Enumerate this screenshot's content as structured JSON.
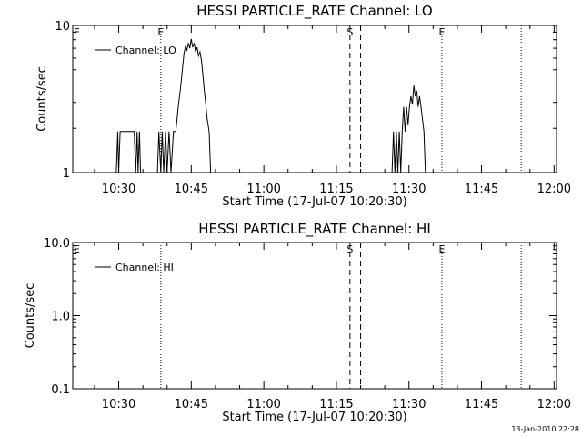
{
  "footer_timestamp": "13-Jan-2010 22:28",
  "chart_data": [
    {
      "type": "line",
      "title": "HESSI PARTICLE_RATE Channel: LO",
      "xlabel": "Start Time (17-Jul-07 10:20:30)",
      "ylabel": "Counts/sec",
      "yscale": "log",
      "ylim": [
        1,
        10
      ],
      "ytick_values": [
        1,
        10
      ],
      "ytick_labels": [
        "1",
        "10"
      ],
      "xlim_minutes": [
        0,
        100
      ],
      "xtick_labels": [
        "10:30",
        "10:45",
        "11:00",
        "11:15",
        "11:30",
        "11:45",
        "12:00"
      ],
      "xtick_minutes": [
        9.5,
        24.5,
        39.5,
        54.5,
        69.5,
        84.5,
        99.5
      ],
      "legend": {
        "label": "Channel: LO",
        "position": "top-left"
      },
      "event_lines": [
        {
          "minute": 18.2,
          "style": "dotted",
          "label": "E"
        },
        {
          "minute": 57.3,
          "style": "dashed",
          "label": "S"
        },
        {
          "minute": 59.5,
          "style": "dashed",
          "label": ""
        },
        {
          "minute": 76.3,
          "style": "dotted",
          "label": "E"
        },
        {
          "minute": 92.7,
          "style": "dotted",
          "label": ""
        }
      ],
      "edge_labels": [
        {
          "minute": 0,
          "label": "E"
        }
      ],
      "series": [
        {
          "name": "Channel: LO",
          "points": [
            [
              9.0,
              1
            ],
            [
              9.3,
              1.9
            ],
            [
              9.5,
              1
            ],
            [
              9.8,
              1.9
            ],
            [
              10.0,
              1.9
            ],
            [
              12.7,
              1.9
            ],
            [
              13.0,
              1
            ],
            [
              13.3,
              1.9
            ],
            [
              13.5,
              1
            ],
            [
              13.8,
              1.9
            ],
            [
              14.0,
              1
            ],
            [
              17.5,
              1
            ],
            [
              17.8,
              1.9
            ],
            [
              18.2,
              1
            ],
            [
              18.5,
              1.9
            ],
            [
              18.8,
              1
            ],
            [
              19.2,
              1.9
            ],
            [
              19.5,
              1
            ],
            [
              19.9,
              1.9
            ],
            [
              20.3,
              1
            ],
            [
              20.8,
              1.9
            ],
            [
              21.3,
              1.9
            ],
            [
              21.8,
              2.8
            ],
            [
              22.3,
              3.8
            ],
            [
              22.7,
              5.2
            ],
            [
              23.0,
              6.5
            ],
            [
              23.3,
              7.2
            ],
            [
              23.6,
              6.8
            ],
            [
              23.9,
              7.6
            ],
            [
              24.2,
              7.0
            ],
            [
              24.5,
              8.1
            ],
            [
              24.8,
              7.1
            ],
            [
              25.1,
              7.6
            ],
            [
              25.4,
              6.6
            ],
            [
              25.7,
              7.1
            ],
            [
              26.0,
              6.2
            ],
            [
              26.3,
              6.6
            ],
            [
              26.6,
              5.8
            ],
            [
              26.9,
              4.6
            ],
            [
              27.2,
              3.6
            ],
            [
              27.5,
              2.9
            ],
            [
              27.8,
              2.3
            ],
            [
              28.2,
              1.9
            ],
            [
              28.5,
              1
            ],
            [
              66.0,
              1
            ],
            [
              66.3,
              1.9
            ],
            [
              66.6,
              1
            ],
            [
              66.9,
              1.9
            ],
            [
              67.2,
              1
            ],
            [
              67.5,
              1.9
            ],
            [
              67.8,
              1
            ],
            [
              68.1,
              1.9
            ],
            [
              68.4,
              2.8
            ],
            [
              68.7,
              1.9
            ],
            [
              69.0,
              2.8
            ],
            [
              69.3,
              2.1
            ],
            [
              69.6,
              2.8
            ],
            [
              69.9,
              3.3
            ],
            [
              70.2,
              2.9
            ],
            [
              70.5,
              3.9
            ],
            [
              70.8,
              3.3
            ],
            [
              71.1,
              3.6
            ],
            [
              71.4,
              2.8
            ],
            [
              71.7,
              3.3
            ],
            [
              72.0,
              2.8
            ],
            [
              72.3,
              2.3
            ],
            [
              72.6,
              1.9
            ],
            [
              72.9,
              1
            ]
          ]
        }
      ]
    },
    {
      "type": "line",
      "title": "HESSI PARTICLE_RATE Channel: HI",
      "xlabel": "Start Time (17-Jul-07 10:20:30)",
      "ylabel": "Counts/sec",
      "yscale": "log",
      "ylim": [
        0.1,
        10
      ],
      "ytick_values": [
        0.1,
        1,
        10
      ],
      "ytick_labels": [
        "0.1",
        "1.0",
        "10.0"
      ],
      "xlim_minutes": [
        0,
        100
      ],
      "xtick_labels": [
        "10:30",
        "10:45",
        "11:00",
        "11:15",
        "11:30",
        "11:45",
        "12:00"
      ],
      "xtick_minutes": [
        9.5,
        24.5,
        39.5,
        54.5,
        69.5,
        84.5,
        99.5
      ],
      "legend": {
        "label": "Channel: HI",
        "position": "top-left"
      },
      "event_lines": [
        {
          "minute": 18.2,
          "style": "dotted",
          "label": ""
        },
        {
          "minute": 57.3,
          "style": "dashed",
          "label": "S"
        },
        {
          "minute": 59.5,
          "style": "dashed",
          "label": ""
        },
        {
          "minute": 76.3,
          "style": "dotted",
          "label": "E"
        },
        {
          "minute": 92.7,
          "style": "dotted",
          "label": ""
        }
      ],
      "edge_labels": [
        {
          "minute": 0,
          "label": "E"
        }
      ],
      "series": [
        {
          "name": "Channel: HI",
          "points": []
        }
      ]
    }
  ]
}
